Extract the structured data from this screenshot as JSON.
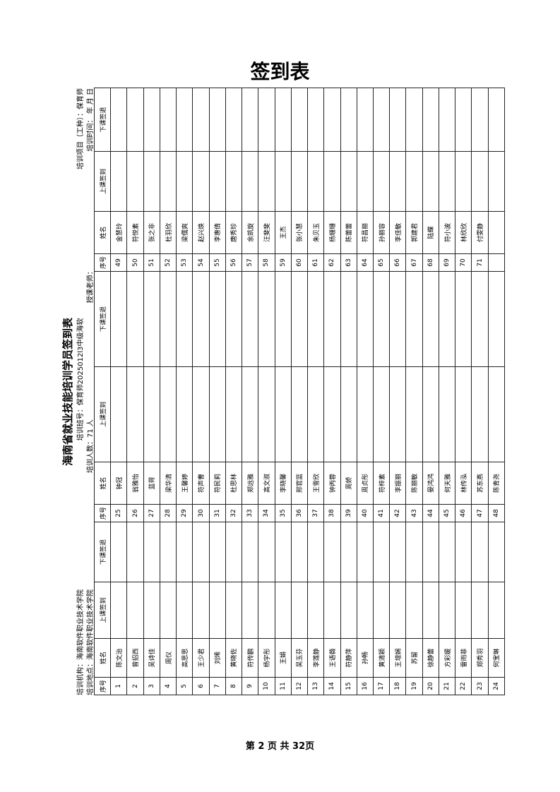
{
  "page_title": "签到表",
  "header": {
    "title": "海南省就业技能培训学员签到表",
    "org": "培训机构：海南软件职业技术学院",
    "class_no": "培训班号：保育师2025012l3中级海软",
    "project": "培训项目（工种）：保育师",
    "location": "培训地点：海南软件职业技术学院",
    "count": "培训人数：71 人",
    "teacher": "授课老师：",
    "time": "培训时间：    年    月    日"
  },
  "table": {
    "columns": [
      "序号",
      "姓名",
      "上课签到",
      "下课签退"
    ],
    "rows": [
      [
        1,
        "陈文治"
      ],
      [
        2,
        "曾招西"
      ],
      [
        3,
        "吴诗佳"
      ],
      [
        4,
        "周仪"
      ],
      [
        5,
        "高思思"
      ],
      [
        6,
        "王少君"
      ],
      [
        7,
        "刘烯"
      ],
      [
        8,
        "黄晓佐"
      ],
      [
        9,
        "符传鹏"
      ],
      [
        10,
        "杨宇彤"
      ],
      [
        11,
        "王娟"
      ],
      [
        12,
        "吴玉芬"
      ],
      [
        13,
        "李莲静"
      ],
      [
        14,
        "王语薇"
      ],
      [
        15,
        "符静萍"
      ],
      [
        16,
        "孙畅"
      ],
      [
        17,
        "黄清颖"
      ],
      [
        18,
        "王增娴"
      ],
      [
        19,
        "苏留"
      ],
      [
        20,
        "徐静蕾"
      ],
      [
        21,
        "方彩媛"
      ],
      [
        22,
        "雷雨菲"
      ],
      [
        23,
        "郑秀羽"
      ],
      [
        24,
        "何宝琳"
      ],
      [
        25,
        "钟冠"
      ],
      [
        26,
        "翁雅怡"
      ],
      [
        27,
        "蓝荷"
      ],
      [
        28,
        "梁华清"
      ],
      [
        29,
        "王馨婷"
      ],
      [
        30,
        "符声曹"
      ],
      [
        31,
        "符民莉"
      ],
      [
        32,
        "杜思林"
      ],
      [
        33,
        "郑远雅"
      ],
      [
        34,
        "高文淑"
      ],
      [
        35,
        "李晓馨"
      ],
      [
        36,
        "邢官蓝"
      ],
      [
        37,
        "王雪欣"
      ],
      [
        38,
        "钟丙蓉"
      ],
      [
        39,
        "周娇"
      ],
      [
        40,
        "周贞彤"
      ],
      [
        41,
        "符梓素"
      ],
      [
        42,
        "李振丽"
      ],
      [
        43,
        "陈丽敏"
      ],
      [
        44,
        "晏鸿鸿"
      ],
      [
        45,
        "何天雅"
      ],
      [
        46,
        "林传泓"
      ],
      [
        47,
        "苏东燕"
      ],
      [
        48,
        "陈青尧"
      ],
      [
        49,
        "金慧玲"
      ],
      [
        50,
        "符悦素"
      ],
      [
        51,
        "张之非"
      ],
      [
        52,
        "杜羽欣"
      ],
      [
        53,
        "梁儒爽"
      ],
      [
        54,
        "赵兴焕"
      ],
      [
        55,
        "李惠倩"
      ],
      [
        56,
        "唐秀珍"
      ],
      [
        57,
        "余凯旋"
      ],
      [
        58,
        "汪斐斐"
      ],
      [
        59,
        "王杰"
      ],
      [
        60,
        "张小慧"
      ],
      [
        61,
        "朱贝玉"
      ],
      [
        62,
        "杨珊珊"
      ],
      [
        63,
        "陈蕾蕾"
      ],
      [
        64,
        "符昌丽"
      ],
      [
        65,
        "孙丽容"
      ],
      [
        66,
        "李佳敏"
      ],
      [
        67,
        "郭建君"
      ],
      [
        68,
        "陆蝶"
      ],
      [
        69,
        "符小波"
      ],
      [
        70,
        "林欣欣"
      ],
      [
        71,
        "付雯静"
      ]
    ]
  },
  "footer": "第 2 页 共 32页"
}
